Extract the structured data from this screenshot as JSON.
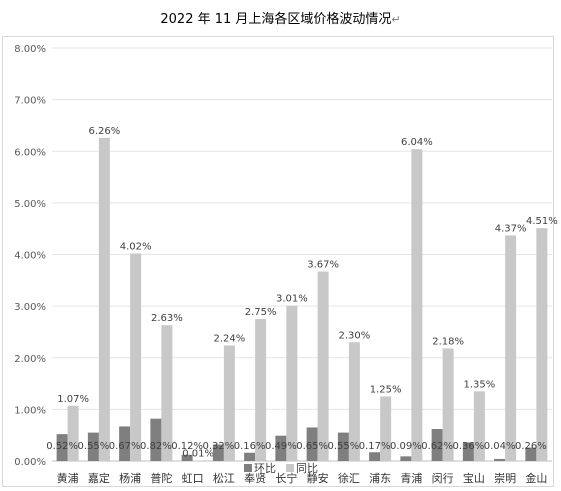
{
  "title": "2022 年 11 月上海各区域价格波动情况",
  "return_mark": "↵",
  "colors": {
    "mom": "#7f7f7f",
    "yoy": "#c8c8c8",
    "grid": "#e6e6e6",
    "axis": "#bfbfbf"
  },
  "chart_data": {
    "type": "bar",
    "title": "2022 年 11 月上海各区域价格波动情况",
    "categories": [
      "黄浦",
      "嘉定",
      "杨浦",
      "普陀",
      "虹口",
      "松江",
      "奉贤",
      "长宁",
      "静安",
      "徐汇",
      "浦东",
      "青浦",
      "闵行",
      "宝山",
      "崇明",
      "金山"
    ],
    "series": [
      {
        "name": "环比",
        "values": [
          0.52,
          0.55,
          0.67,
          0.82,
          0.12,
          0.32,
          0.16,
          0.49,
          0.65,
          0.55,
          0.17,
          0.09,
          0.62,
          0.36,
          0.04,
          0.26
        ],
        "labels": [
          "0.52%",
          "0.55%",
          "0.67%",
          "0.82%",
          "0.12%",
          "0.32%",
          "0.16%",
          "0.49%",
          "0.65%",
          "0.55%",
          "0.17%",
          "0.09%",
          "0.62%",
          "0.36%",
          "0.04%",
          "0.26%"
        ]
      },
      {
        "name": "同比",
        "values": [
          1.07,
          6.26,
          4.02,
          2.63,
          0.01,
          2.24,
          2.75,
          3.01,
          3.67,
          2.3,
          1.25,
          6.04,
          2.18,
          1.35,
          4.37,
          4.51
        ],
        "labels": [
          "1.07%",
          "6.26%",
          "4.02%",
          "2.63%",
          "0.01%",
          "2.24%",
          "2.75%",
          "3.01%",
          "3.67%",
          "2.30%",
          "1.25%",
          "6.04%",
          "2.18%",
          "1.35%",
          "4.37%",
          "4.51%"
        ]
      }
    ],
    "ylim": [
      0,
      8
    ],
    "yticks": [
      "0.00%",
      "1.00%",
      "2.00%",
      "3.00%",
      "4.00%",
      "5.00%",
      "6.00%",
      "7.00%",
      "8.00%"
    ],
    "grid": true,
    "legend_position": "bottom"
  }
}
